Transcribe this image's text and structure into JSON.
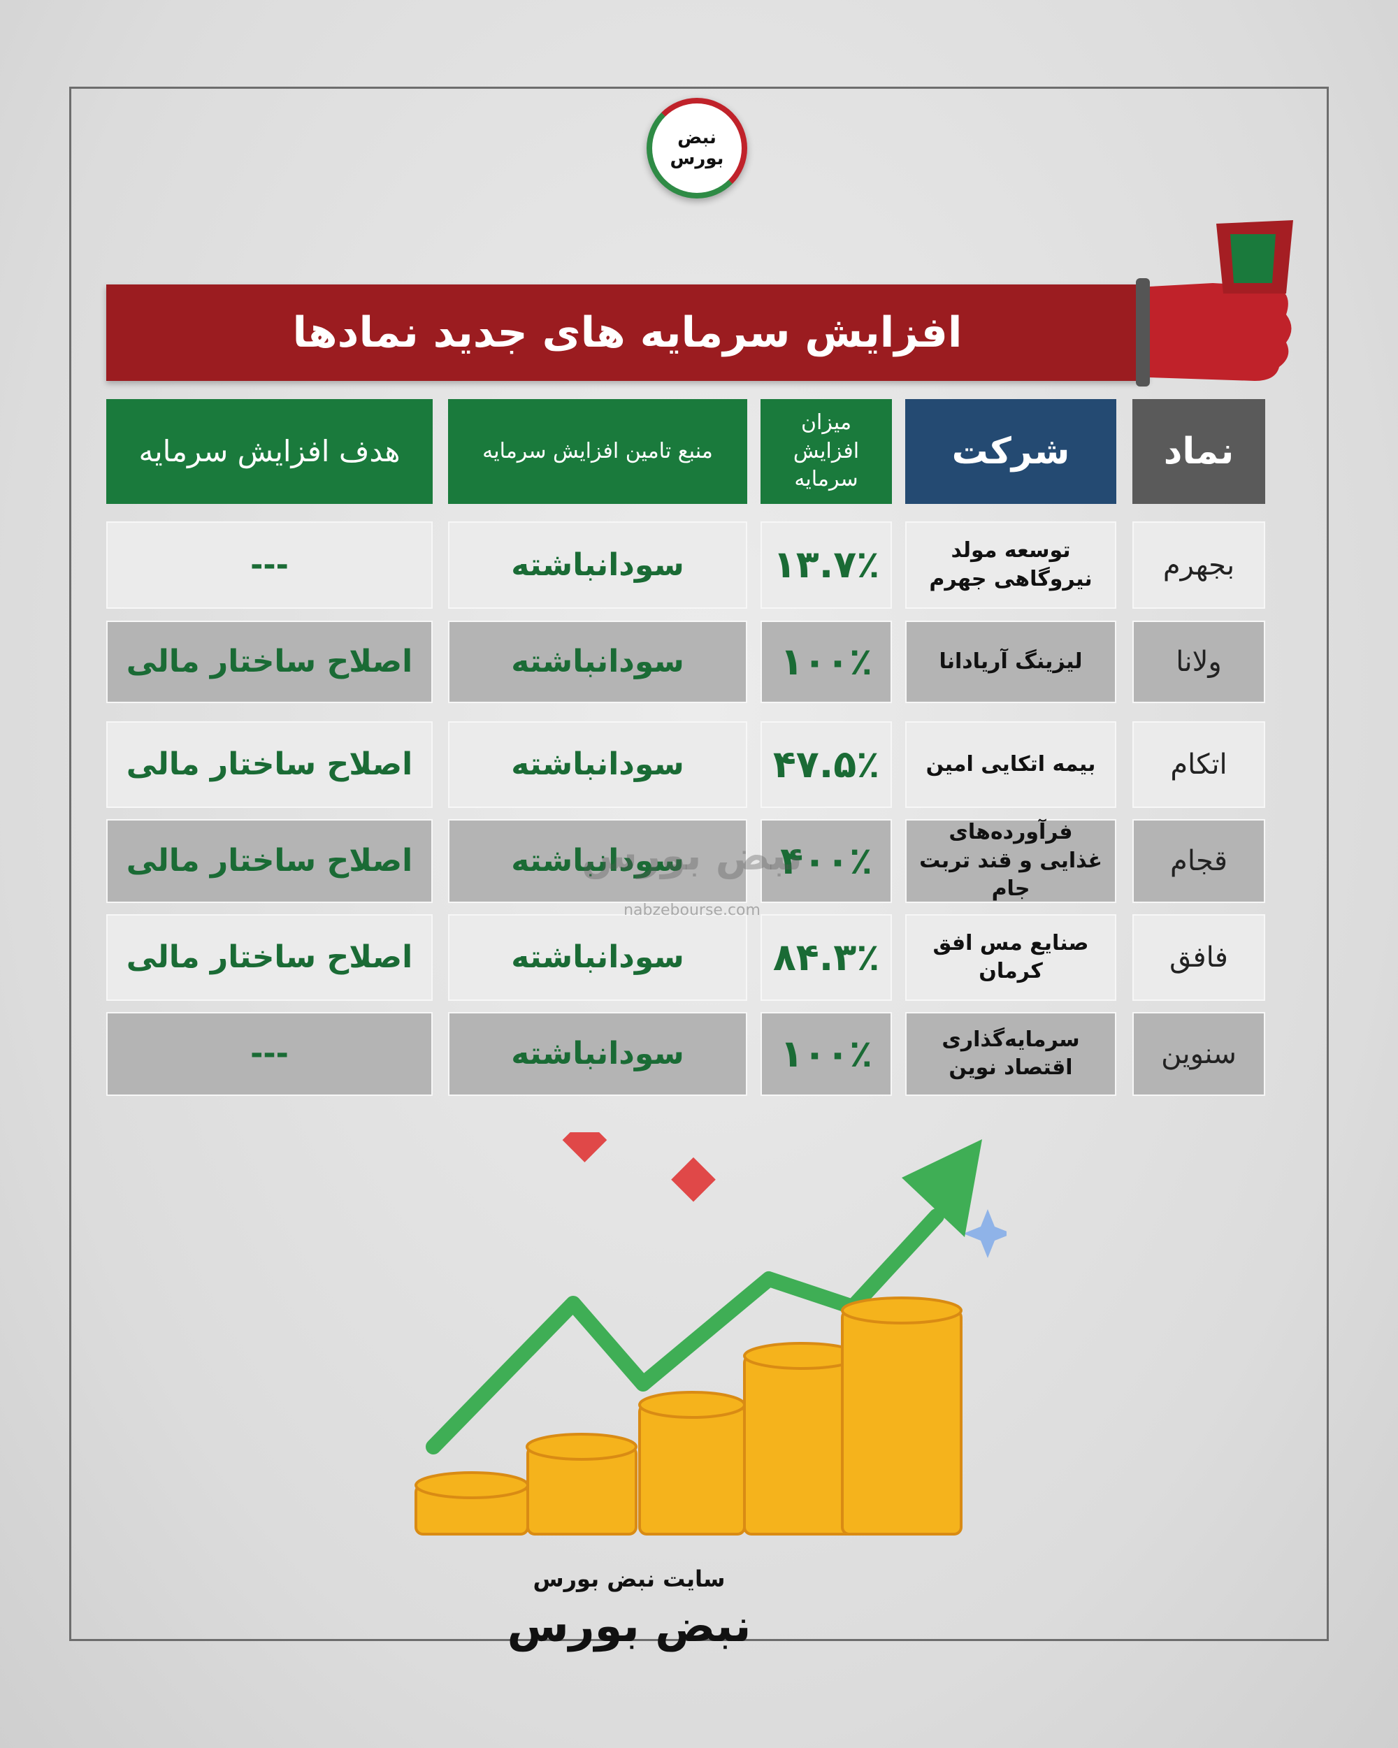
{
  "logo": {
    "text": "نبض بورس"
  },
  "title": "افزایش سرمایه های جدید نمادها",
  "table": {
    "header": [
      "نماد",
      "شرکت",
      "میزان افزایش سرمایه",
      "منبع تامین افزایش سرمایه",
      "هدف افزایش سرمایه"
    ],
    "rows": [
      [
        "بجهرم",
        "توسعه مولد نیروگاهی جهرم",
        "۱۳.۷٪",
        "سودانباشته",
        "---"
      ],
      [
        "ولانا",
        "لیزینگ آریادانا",
        "۱۰۰٪",
        "سودانباشته",
        "اصلاح ساختار مالی"
      ],
      [
        "اتکام",
        "بیمه اتکایی امین",
        "۴۷.۵٪",
        "سودانباشته",
        "اصلاح ساختار مالی"
      ],
      [
        "قجام",
        "فرآورده‌های غذایی و قند تربت جام",
        "۴۰۰٪",
        "سودانباشته",
        "اصلاح ساختار مالی"
      ],
      [
        "فافق",
        "صنایع مس افق کرمان",
        "۸۴.۳٪",
        "سودانباشته",
        "اصلاح ساختار مالی"
      ],
      [
        "سنوین",
        "سرمایه‌گذاری اقتصاد نوین",
        "۱۰۰٪",
        "سودانباشته",
        "---"
      ]
    ]
  },
  "watermark": {
    "text": "نبض بورس",
    "url": "nabzebourse.com"
  },
  "footer": {
    "caption": "سایت نبض بورس",
    "logo": "نبض بورس"
  }
}
